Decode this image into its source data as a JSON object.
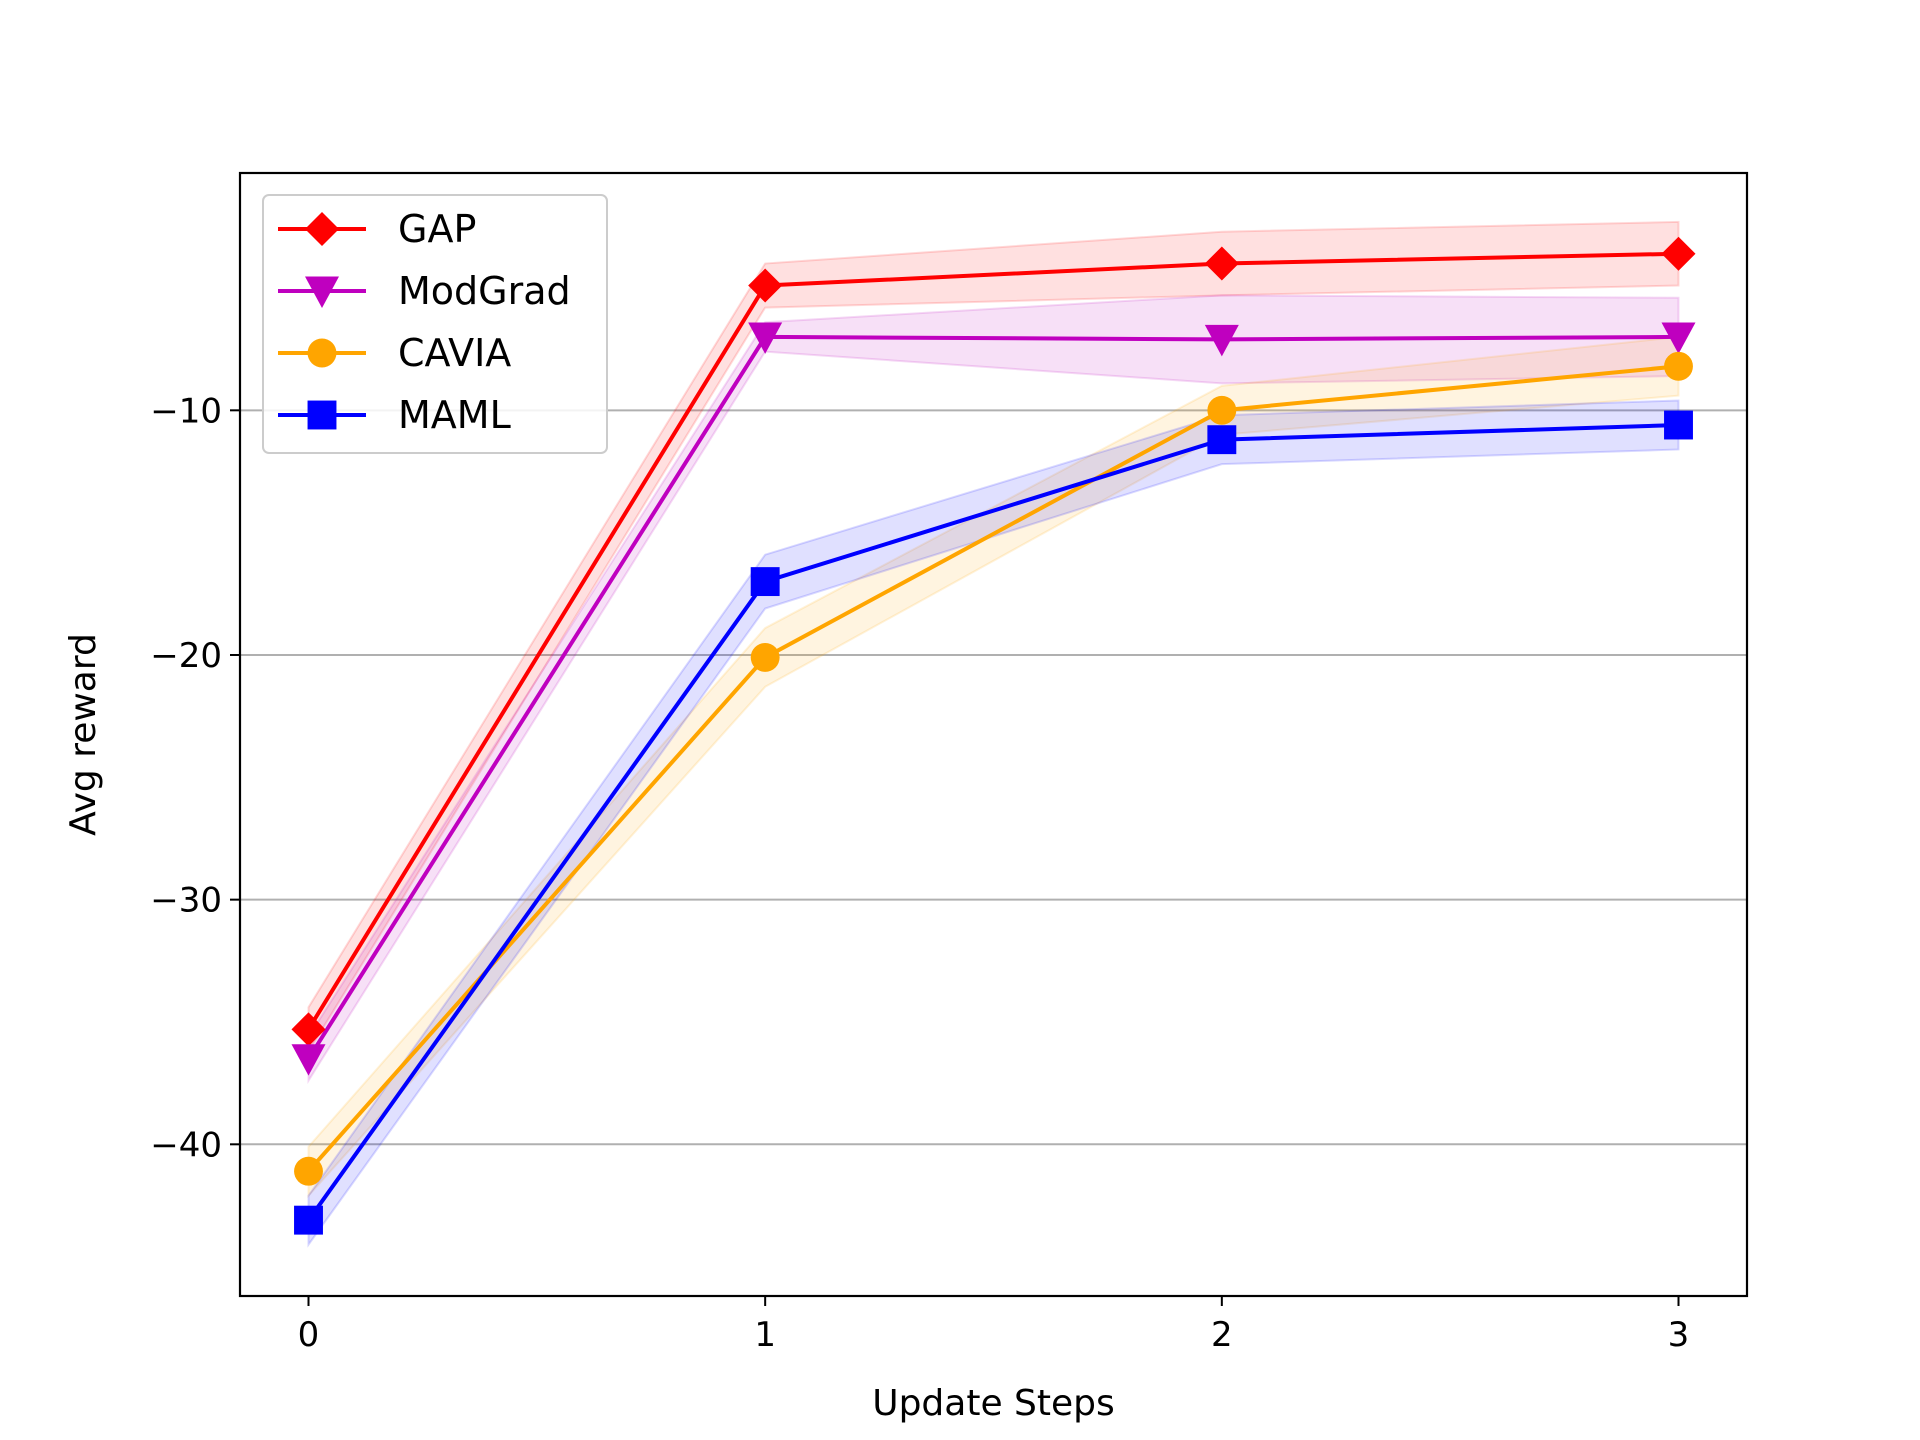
{
  "chart_data": {
    "type": "line",
    "title": "",
    "xlabel": "Update Steps",
    "ylabel": "Avg reward",
    "x": [
      0,
      1,
      2,
      3
    ],
    "xticks": [
      "0",
      "1",
      "2",
      "3"
    ],
    "yticks": [
      -40,
      -30,
      -20,
      -10
    ],
    "ytick_labels": [
      "−40",
      "−30",
      "−20",
      "−10"
    ],
    "xlim": [
      -0.15,
      3.15
    ],
    "ylim": [
      -46.2,
      -0.3
    ],
    "grid": "horizontal",
    "legend_position": "top-left",
    "series": [
      {
        "name": "GAP",
        "color": "#ff0000",
        "marker": "diamond",
        "values": [
          -35.3,
          -4.9,
          -4.0,
          -3.6
        ],
        "lower": [
          -36.2,
          -5.8,
          -5.3,
          -4.9
        ],
        "upper": [
          -34.4,
          -4.0,
          -2.7,
          -2.3
        ]
      },
      {
        "name": "ModGrad",
        "color": "#bf00bf",
        "marker": "triangle-down",
        "values": [
          -36.5,
          -7.0,
          -7.1,
          -7.0
        ],
        "lower": [
          -37.4,
          -7.6,
          -8.9,
          -8.6
        ],
        "upper": [
          -35.6,
          -6.4,
          -5.3,
          -5.4
        ]
      },
      {
        "name": "CAVIA",
        "color": "#ffa500",
        "marker": "circle",
        "values": [
          -41.1,
          -20.1,
          -10.0,
          -8.2
        ],
        "lower": [
          -42.1,
          -21.3,
          -11.0,
          -9.4
        ],
        "upper": [
          -40.1,
          -18.9,
          -9.0,
          -7.0
        ]
      },
      {
        "name": "MAML",
        "color": "#0000ff",
        "marker": "square",
        "values": [
          -43.1,
          -17.0,
          -11.2,
          -10.6
        ],
        "lower": [
          -44.1,
          -18.1,
          -12.2,
          -11.6
        ],
        "upper": [
          -42.1,
          -15.9,
          -10.2,
          -9.6
        ]
      }
    ]
  }
}
